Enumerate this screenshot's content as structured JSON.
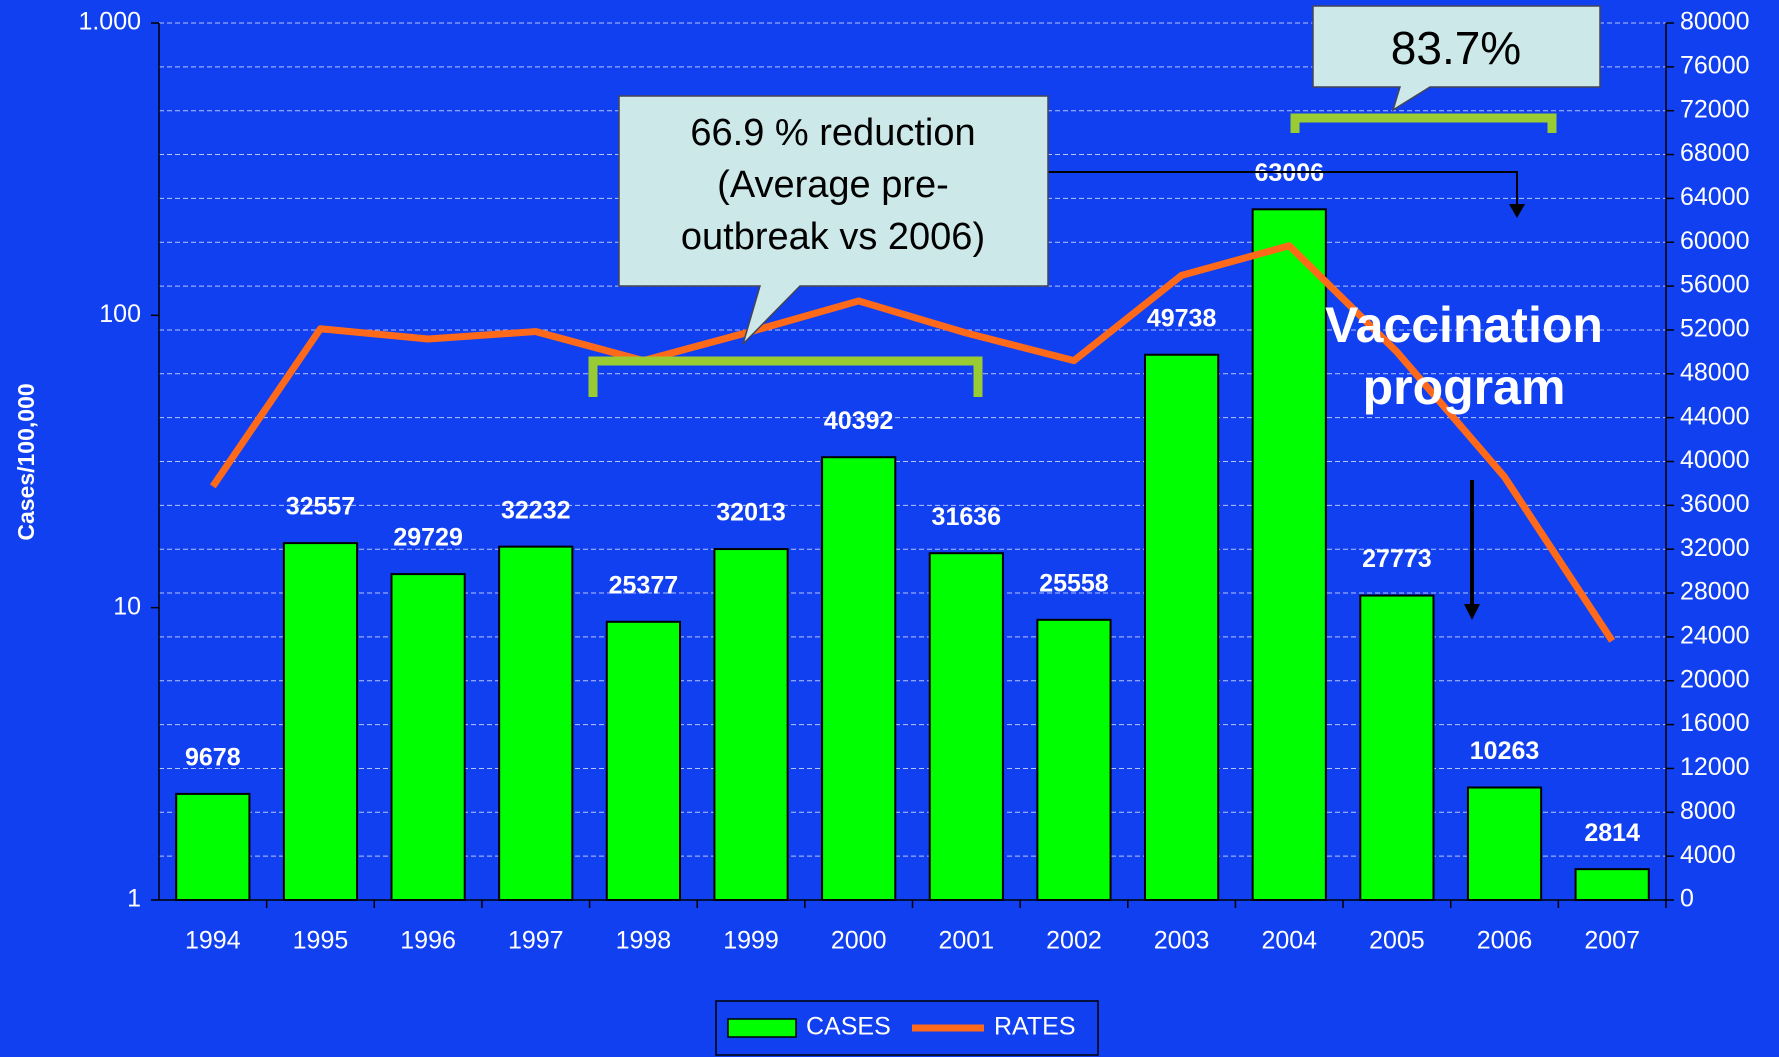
{
  "chart_data": {
    "type": "bar",
    "categories": [
      "1994",
      "1995",
      "1996",
      "1997",
      "1998",
      "1999",
      "2000",
      "2001",
      "2002",
      "2003",
      "2004",
      "2005",
      "2006",
      "2007"
    ],
    "series": [
      {
        "name": "CASES",
        "type": "bar",
        "axis": "y2",
        "color": "#00ff00",
        "values": [
          9678,
          32557,
          29729,
          32232,
          25377,
          32013,
          40392,
          31636,
          25558,
          49738,
          63006,
          27773,
          10263,
          2814
        ]
      },
      {
        "name": "RATES",
        "type": "line",
        "color": "#ff6a1a",
        "values": [
          26,
          90,
          83,
          88,
          70,
          88,
          112,
          87,
          70,
          137,
          173,
          75,
          28,
          7.7
        ]
      }
    ],
    "y_label": "Cases/100,000",
    "ylim": [
      1,
      1000
    ],
    "yticks": [
      1,
      10,
      100,
      {
        "value": 1000,
        "label": "1.000"
      }
    ],
    "log_scale_y": true,
    "y2lim": [
      0,
      80000
    ],
    "y2ticks": [
      0,
      4000,
      8000,
      12000,
      16000,
      20000,
      24000,
      28000,
      32000,
      36000,
      40000,
      44000,
      48000,
      52000,
      56000,
      60000,
      64000,
      68000,
      72000,
      76000,
      80000
    ],
    "grid": true,
    "legend_position": "bottom",
    "annotations": {
      "reduction": [
        "66.9 % reduction",
        "(Average pre-",
        "outbreak vs 2006)"
      ],
      "reduction_recent": "83.7%",
      "vaccination": [
        "Vaccination",
        "program"
      ]
    }
  }
}
